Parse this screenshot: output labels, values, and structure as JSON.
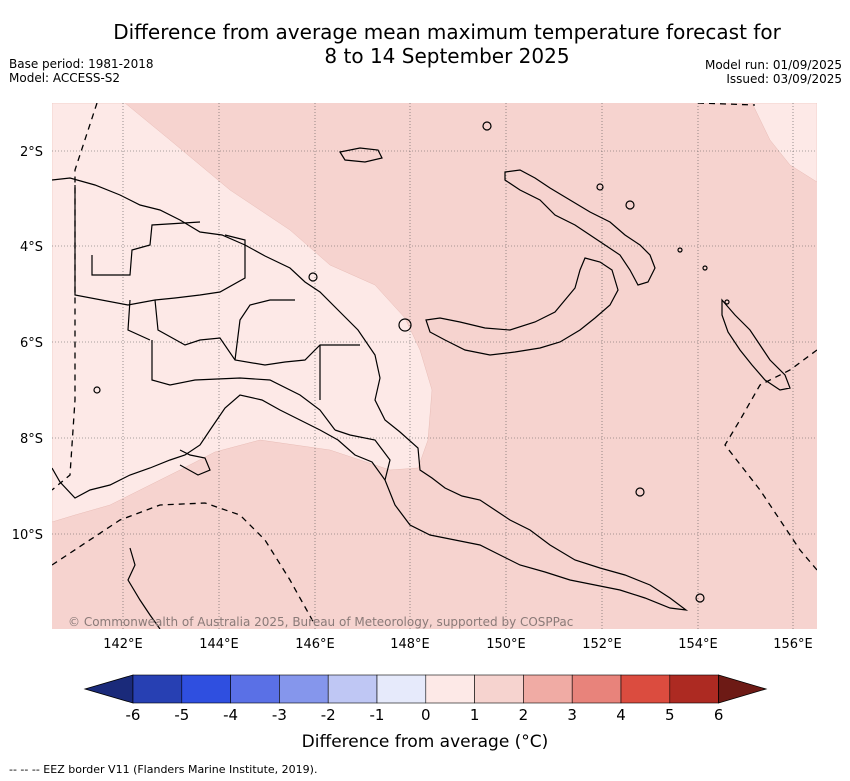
{
  "title_line1": "Difference from average mean maximum temperature forecast for",
  "title_line2": "8 to 14 September 2025",
  "base_period": "Base period: 1981-2018",
  "model": "Model: ACCESS-S2",
  "model_run": "Model run: 01/09/2025",
  "issued": "Issued: 03/09/2025",
  "copyright": "© Commonwealth of Australia 2025, Bureau of Meteorology, supported by COSPPac",
  "lat_labels": [
    "2°S",
    "4°S",
    "6°S",
    "8°S",
    "10°S"
  ],
  "lon_labels": [
    "142°E",
    "144°E",
    "146°E",
    "148°E",
    "150°E",
    "152°E",
    "154°E",
    "156°E"
  ],
  "colorbar": {
    "label": "Difference from average (°C)",
    "ticks": [
      "-6",
      "-5",
      "-4",
      "-3",
      "-2",
      "-1",
      "0",
      "1",
      "2",
      "3",
      "4",
      "5",
      "6"
    ],
    "colors": [
      "#1a2a7a",
      "#2740b3",
      "#2f4fe0",
      "#5a70e6",
      "#8596ec",
      "#bfc7f4",
      "#e6eafb",
      "#fde9e7",
      "#f6d3cf",
      "#f0aba4",
      "#e8837b",
      "#db4c3f",
      "#ad2a22",
      "#6d1a15"
    ]
  },
  "eez_note": "-- -- -- EEZ border V11 (Flanders Marine Institute, 2019).",
  "colors": {
    "anomaly_0_1": "#fde9e7",
    "anomaly_1_2": "#f6d3cf"
  }
}
